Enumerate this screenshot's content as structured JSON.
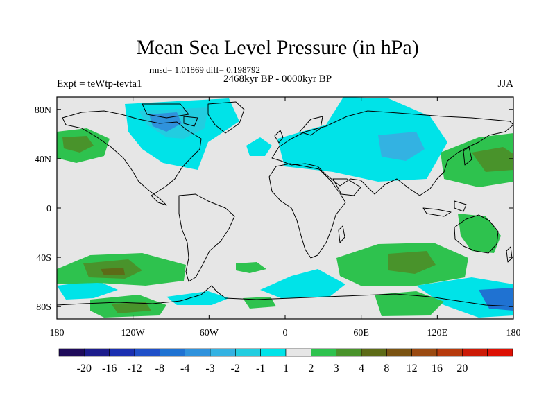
{
  "title": "Mean Sea Level Pressure (in hPa)",
  "stats": "rmsd= 1.01869 diff= 0.198792",
  "period": "2468kyr BP - 0000kyr BP",
  "experiment": "Expt = teWtp-tevta1",
  "season": "JJA",
  "axes": {
    "lat_ticks": [
      {
        "label": "80N",
        "value": 80
      },
      {
        "label": "40N",
        "value": 40
      },
      {
        "label": "0",
        "value": 0
      },
      {
        "label": "40S",
        "value": -40
      },
      {
        "label": "80S",
        "value": -80
      }
    ],
    "lon_ticks": [
      {
        "label": "180",
        "value": -180
      },
      {
        "label": "120W",
        "value": -120
      },
      {
        "label": "60W",
        "value": -60
      },
      {
        "label": "0",
        "value": 0
      },
      {
        "label": "60E",
        "value": 60
      },
      {
        "label": "120E",
        "value": 120
      },
      {
        "label": "180",
        "value": 180
      }
    ],
    "lat_range": [
      -90,
      90
    ],
    "lon_range": [
      -180,
      180
    ]
  },
  "colorbar": {
    "colors": [
      "#1e0a5a",
      "#1c1c8c",
      "#1a2fb0",
      "#1f4fc8",
      "#1f72d2",
      "#2f92dc",
      "#33b2e2",
      "#22cde0",
      "#00e3e8",
      "#e6e6e6",
      "#2ec24e",
      "#49932b",
      "#5d6b17",
      "#7a5312",
      "#9a4a11",
      "#b63a0c",
      "#cc1a06",
      "#dd1004"
    ],
    "labels": [
      "-20",
      "-16",
      "-12",
      "-8",
      "-4",
      "-3",
      "-2",
      "-1",
      "1",
      "2",
      "3",
      "4",
      "8",
      "12",
      "16",
      "20"
    ]
  },
  "colors": {
    "background": "#e6e6e6",
    "coast": "#000000"
  }
}
